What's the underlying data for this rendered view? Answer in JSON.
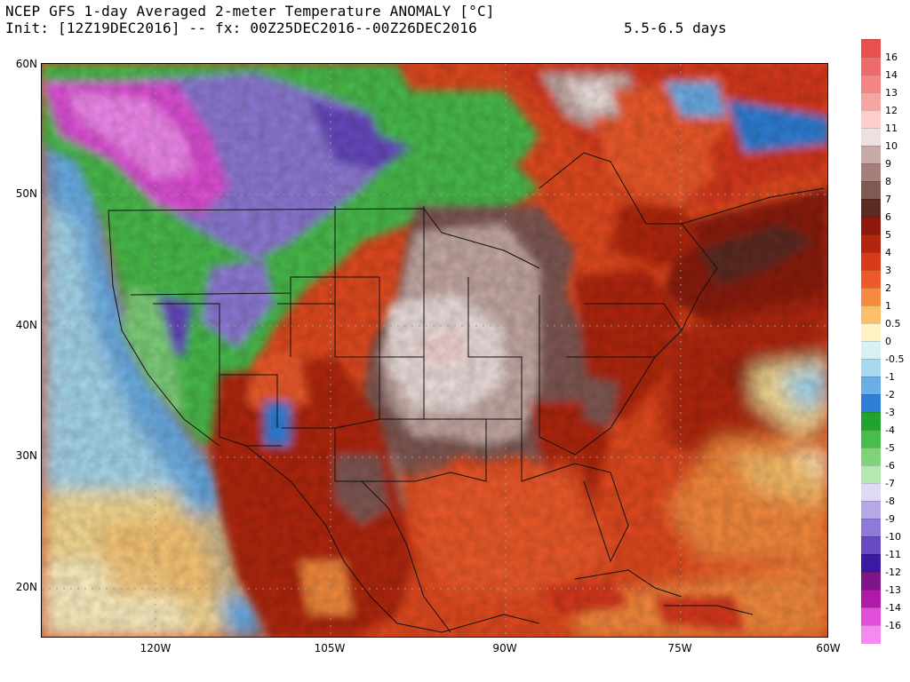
{
  "header": {
    "title_line1": "NCEP GFS 1-day Averaged 2-meter Temperature ANOMALY [°C]",
    "title_line2": "Init: [12Z19DEC2016] -- fx: 00Z25DEC2016--00Z26DEC2016",
    "lead_days": "5.5-6.5 days"
  },
  "map": {
    "lat_labels": [
      "60N",
      "50N",
      "40N",
      "30N",
      "20N"
    ],
    "lon_labels": [
      "120W",
      "105W",
      "90W",
      "75W",
      "60W"
    ],
    "background_color": "#e34a1f"
  },
  "colorbar": {
    "labels": [
      "16",
      "14",
      "13",
      "12",
      "11",
      "10",
      "9",
      "8",
      "7",
      "6",
      "5",
      "4",
      "3",
      "2",
      "1",
      "0.5",
      "0",
      "-0.5",
      "-1",
      "-2",
      "-3",
      "-4",
      "-5",
      "-6",
      "-7",
      "-8",
      "-9",
      "-10",
      "-11",
      "-12",
      "-13",
      "-14",
      "-16"
    ],
    "colors": [
      "#e8504e",
      "#ef6b6a",
      "#f38584",
      "#f7a5a3",
      "#fbcdcb",
      "#eee0de",
      "#c7aaa5",
      "#a47f79",
      "#805952",
      "#5c2c24",
      "#8b1a0c",
      "#b2260f",
      "#d7391b",
      "#ef5a2a",
      "#f68a3e",
      "#fbbf6a",
      "#fff3c4",
      "#d8f1f5",
      "#a8d9ee",
      "#6aaee6",
      "#2f7fd6",
      "#22a230",
      "#49bd4b",
      "#7fd37a",
      "#b5e7b1",
      "#e0d9f2",
      "#b9a8e6",
      "#8f7ad7",
      "#6749c0",
      "#3a1aa0",
      "#7d1686",
      "#b11aa8",
      "#e050d8",
      "#f48af0"
    ]
  }
}
